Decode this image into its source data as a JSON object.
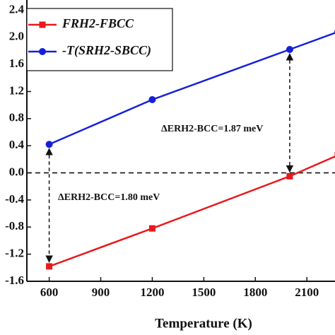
{
  "chart_data": {
    "type": "line",
    "x_label": "Temperature (K)",
    "series": [
      {
        "name": "FRH2-FBCC",
        "color": "#e8191c",
        "marker": "square",
        "x": [
          600,
          1200,
          2000,
          2280
        ],
        "values": [
          -1.38,
          -0.82,
          -0.05,
          0.26
        ]
      },
      {
        "name": "-T(SRH2-SBCC)",
        "color": "#1420d8",
        "marker": "circle",
        "x": [
          600,
          1200,
          2000,
          2280
        ],
        "values": [
          0.42,
          1.08,
          1.82,
          2.08
        ]
      }
    ],
    "xlim": [
      470,
      2280
    ],
    "xticks": [
      600,
      900,
      1200,
      1500,
      1800,
      2100
    ],
    "ylim": [
      -1.6,
      2.55
    ],
    "yticks": [
      -1.6,
      -1.2,
      -0.8,
      -0.4,
      {
        "value": 0,
        "label": "0.0"
      },
      0.4,
      0.8,
      1.2,
      1.6,
      {
        "value": 2,
        "label": "2.0"
      },
      2.4
    ],
    "annotations": [
      {
        "text": "ΔERH2-BCC=1.80 meV",
        "x": 600,
        "from": 0.42,
        "to": -1.38
      },
      {
        "text": "ΔERH2-BCC=1.87 meV",
        "x": 2000,
        "from": 1.82,
        "to": -0.05
      }
    ],
    "reference_line": 0
  }
}
